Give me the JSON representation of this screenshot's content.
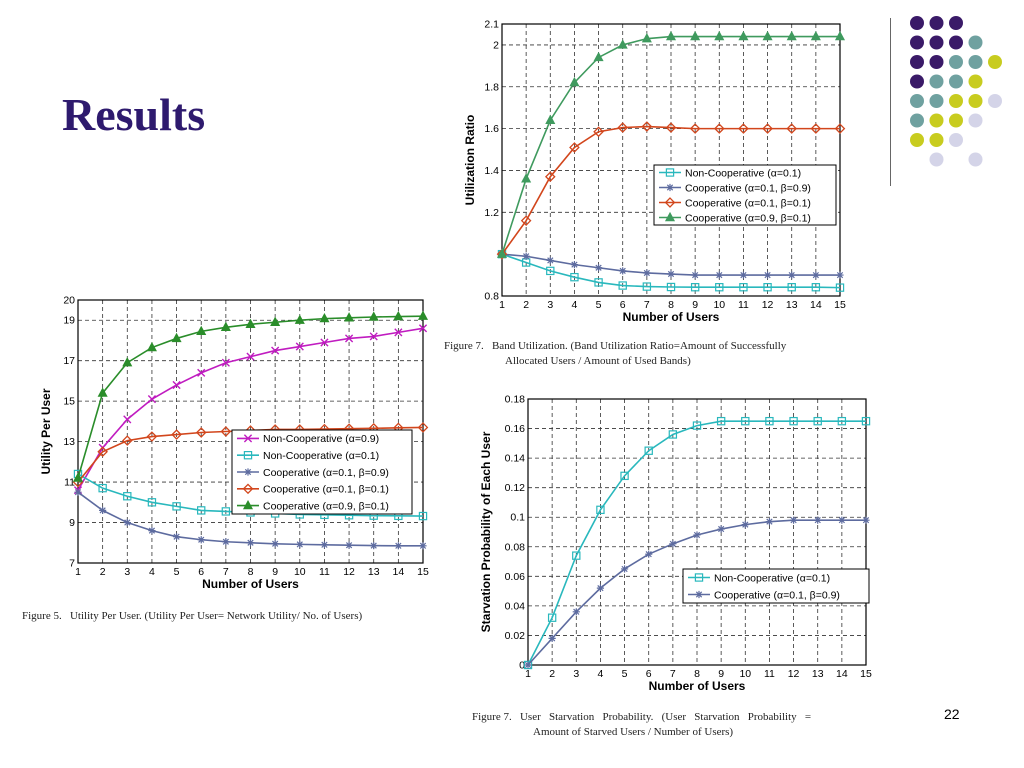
{
  "slide": {
    "title": "Results",
    "page_number": "22",
    "captions": {
      "fig5": "Figure 5.   Utility Per User. (Utility Per User= Network Utility/ No. of Users)",
      "fig7a_line1": "Figure 7.   Band Utilization. (Band Utilization Ratio=Amount of Successfully",
      "fig7a_line2": "Allocated Users / Amount of Used Bands)",
      "fig7b_line1": "Figure 7.   User   Starvation   Probability.   (User   Starvation   Probability   =",
      "fig7b_line2": "Amount of Starved Users / Number of Users)"
    },
    "decoration_colors": [
      "#3a1a68",
      "#6fa1a0",
      "#c8cc1f",
      "#d4d4e8"
    ]
  },
  "chart_data": [
    {
      "id": "utility",
      "type": "line",
      "title": "",
      "xlabel": "Number of Users",
      "ylabel": "Utility Per User",
      "x": [
        1,
        2,
        3,
        4,
        5,
        6,
        7,
        8,
        9,
        10,
        11,
        12,
        13,
        14,
        15
      ],
      "xlim": [
        1,
        15
      ],
      "ylim": [
        7,
        20
      ],
      "yticks": [
        7,
        9,
        11,
        13,
        15,
        17,
        19,
        20
      ],
      "grid": true,
      "legend_position": "center-right",
      "series": [
        {
          "name": "Non-Cooperative (α=0.9)",
          "color": "#c01cc0",
          "marker": "x",
          "values": [
            10.6,
            12.7,
            14.1,
            15.1,
            15.8,
            16.4,
            16.9,
            17.2,
            17.5,
            17.7,
            17.9,
            18.1,
            18.2,
            18.4,
            18.6
          ]
        },
        {
          "name": "Non-Cooperative (α=0.1)",
          "color": "#29b8bd",
          "marker": "square",
          "values": [
            11.4,
            10.7,
            10.3,
            10.0,
            9.8,
            9.6,
            9.55,
            9.5,
            9.45,
            9.4,
            9.38,
            9.36,
            9.34,
            9.33,
            9.32
          ]
        },
        {
          "name": "Cooperative (α=0.1, β=0.9)",
          "color": "#5d6b9f",
          "marker": "asterisk",
          "values": [
            10.5,
            9.6,
            9.0,
            8.6,
            8.3,
            8.15,
            8.05,
            8.0,
            7.95,
            7.92,
            7.9,
            7.88,
            7.86,
            7.85,
            7.85
          ]
        },
        {
          "name": "Cooperative (α=0.1, β=0.1)",
          "color": "#d2461c",
          "marker": "diamond",
          "values": [
            11.0,
            12.5,
            13.05,
            13.25,
            13.35,
            13.45,
            13.5,
            13.55,
            13.6,
            13.6,
            13.62,
            13.64,
            13.66,
            13.68,
            13.7
          ]
        },
        {
          "name": "Cooperative (α=0.9, β=0.1)",
          "color": "#2a8d2a",
          "marker": "triangle",
          "values": [
            11.2,
            15.4,
            16.9,
            17.65,
            18.1,
            18.45,
            18.65,
            18.8,
            18.9,
            19.0,
            19.08,
            19.12,
            19.16,
            19.18,
            19.2
          ]
        }
      ]
    },
    {
      "id": "band",
      "type": "line",
      "title": "",
      "xlabel": "Number of Users",
      "ylabel": "Utilization Ratio",
      "x": [
        1,
        2,
        3,
        4,
        5,
        6,
        7,
        8,
        9,
        10,
        11,
        12,
        13,
        14,
        15
      ],
      "xlim": [
        1,
        15
      ],
      "ylim": [
        0.8,
        2.1
      ],
      "yticks": [
        0.8,
        1.2,
        1.4,
        1.6,
        1.8,
        2,
        2.1
      ],
      "grid": true,
      "legend_position": "center-right",
      "series": [
        {
          "name": "Non-Cooperative (α=0.1)",
          "color": "#29b8bd",
          "marker": "square",
          "values": [
            1.0,
            0.96,
            0.92,
            0.89,
            0.865,
            0.85,
            0.845,
            0.843,
            0.842,
            0.842,
            0.842,
            0.842,
            0.842,
            0.842,
            0.84
          ]
        },
        {
          "name": "Cooperative (α=0.1, β=0.9)",
          "color": "#5d6b9f",
          "marker": "asterisk",
          "values": [
            1.0,
            0.99,
            0.97,
            0.95,
            0.935,
            0.92,
            0.91,
            0.905,
            0.9,
            0.9,
            0.9,
            0.9,
            0.9,
            0.9,
            0.9
          ]
        },
        {
          "name": "Cooperative (α=0.1, β=0.1)",
          "color": "#d2461c",
          "marker": "diamond",
          "values": [
            1.0,
            1.16,
            1.37,
            1.51,
            1.585,
            1.605,
            1.61,
            1.605,
            1.6,
            1.6,
            1.6,
            1.6,
            1.6,
            1.6,
            1.6
          ]
        },
        {
          "name": "Cooperative (α=0.9, β=0.1)",
          "color": "#3f9a5e",
          "marker": "triangle",
          "values": [
            1.0,
            1.36,
            1.64,
            1.82,
            1.94,
            2.0,
            2.03,
            2.04,
            2.04,
            2.04,
            2.04,
            2.04,
            2.04,
            2.04,
            2.04
          ]
        }
      ]
    },
    {
      "id": "starvation",
      "type": "line",
      "title": "",
      "xlabel": "Number of Users",
      "ylabel": "Starvation Probability of Each User",
      "x": [
        1,
        2,
        3,
        4,
        5,
        6,
        7,
        8,
        9,
        10,
        11,
        12,
        13,
        14,
        15
      ],
      "xlim": [
        1,
        15
      ],
      "ylim": [
        0,
        0.18
      ],
      "yticks": [
        0,
        0.02,
        0.04,
        0.06,
        0.08,
        0.1,
        0.12,
        0.14,
        0.16,
        0.18
      ],
      "grid": true,
      "legend_position": "lower-right",
      "series": [
        {
          "name": "Non-Cooperative (α=0.1)",
          "color": "#29b8bd",
          "marker": "square",
          "values": [
            0.0,
            0.032,
            0.074,
            0.105,
            0.128,
            0.145,
            0.156,
            0.162,
            0.165,
            0.165,
            0.165,
            0.165,
            0.165,
            0.165,
            0.165
          ]
        },
        {
          "name": "Cooperative (α=0.1, β=0.9)",
          "color": "#5d6b9f",
          "marker": "asterisk",
          "values": [
            0.0,
            0.018,
            0.036,
            0.052,
            0.065,
            0.075,
            0.082,
            0.088,
            0.092,
            0.095,
            0.097,
            0.098,
            0.098,
            0.098,
            0.098
          ]
        }
      ]
    }
  ]
}
